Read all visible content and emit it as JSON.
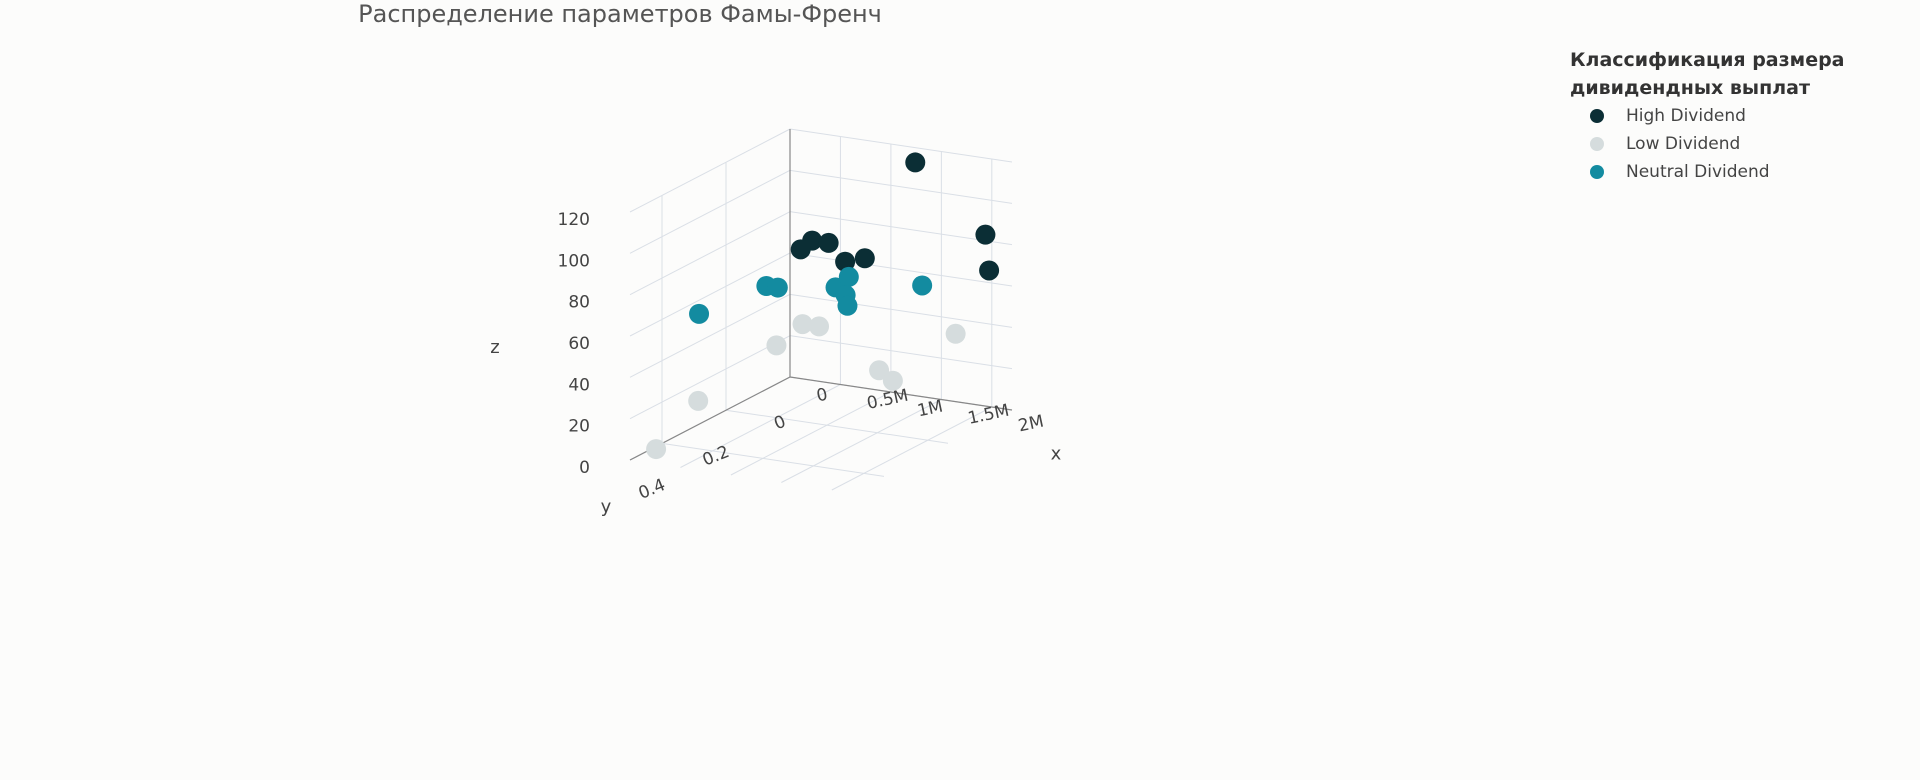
{
  "chart_data": {
    "type": "scatter3d",
    "title": "Распределение параметров Фамы-Френч",
    "axes": {
      "x": {
        "label": "x",
        "ticks": [
          "0",
          "0.5M",
          "1M",
          "1.5M",
          "2M"
        ],
        "range": [
          0,
          2200000
        ]
      },
      "y": {
        "label": "y",
        "ticks": [
          "0",
          "0.2",
          "0.4"
        ],
        "range": [
          0,
          0.5
        ]
      },
      "z": {
        "label": "z",
        "ticks": [
          "0",
          "20",
          "40",
          "60",
          "80",
          "100",
          "120"
        ],
        "range": [
          0,
          120
        ]
      }
    },
    "grid": true,
    "legend": {
      "title": "Классификация размера дивидендных выплат",
      "placement": "top-right"
    },
    "series": [
      {
        "name": "High Dividend",
        "color": "#0b2e35",
        "points": [
          {
            "x": 1400000,
            "y": 0.05,
            "z": 118
          },
          {
            "x": 600000,
            "y": 0.12,
            "z": 80
          },
          {
            "x": 700000,
            "y": 0.1,
            "z": 78
          },
          {
            "x": 550000,
            "y": 0.14,
            "z": 77
          },
          {
            "x": 800000,
            "y": 0.08,
            "z": 68
          },
          {
            "x": 900000,
            "y": 0.05,
            "z": 68
          },
          {
            "x": 2000000,
            "y": 0.02,
            "z": 85
          },
          {
            "x": 2100000,
            "y": 0.04,
            "z": 70
          }
        ]
      },
      {
        "name": "Low Dividend",
        "color": "#d5dcdd",
        "points": [
          {
            "x": 100000,
            "y": 0.45,
            "z": 2
          },
          {
            "x": 200000,
            "y": 0.35,
            "z": 18
          },
          {
            "x": 600000,
            "y": 0.15,
            "z": 42
          },
          {
            "x": 700000,
            "y": 0.13,
            "z": 40
          },
          {
            "x": 500000,
            "y": 0.2,
            "z": 35
          },
          {
            "x": 1800000,
            "y": 0.05,
            "z": 38
          },
          {
            "x": 1200000,
            "y": 0.1,
            "z": 20
          },
          {
            "x": 1400000,
            "y": 0.12,
            "z": 18
          }
        ]
      },
      {
        "name": "Neutral Dividend",
        "color": "#138ba0",
        "points": [
          {
            "x": 50000,
            "y": 0.3,
            "z": 55
          },
          {
            "x": 400000,
            "y": 0.2,
            "z": 63
          },
          {
            "x": 450000,
            "y": 0.18,
            "z": 61
          },
          {
            "x": 800000,
            "y": 0.11,
            "z": 58
          },
          {
            "x": 900000,
            "y": 0.1,
            "z": 63
          },
          {
            "x": 900000,
            "y": 0.11,
            "z": 55
          },
          {
            "x": 950000,
            "y": 0.12,
            "z": 51
          },
          {
            "x": 1500000,
            "y": 0.06,
            "z": 60
          }
        ]
      }
    ]
  }
}
